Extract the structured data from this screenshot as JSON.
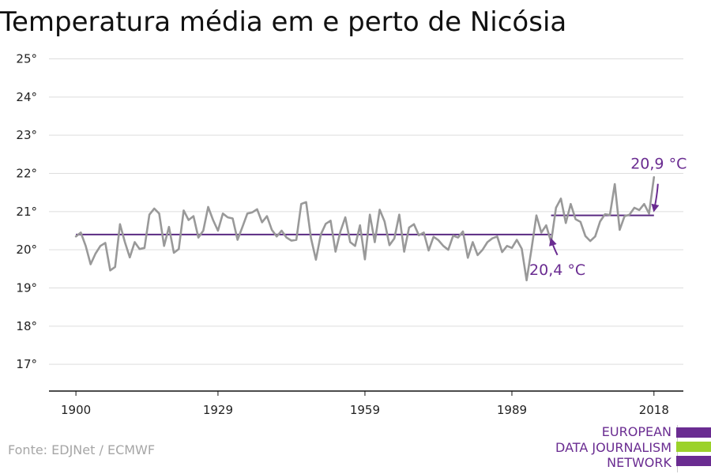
{
  "title": "Temperatura média em e perto de Nicósia",
  "source": "Fonte: EDJNet / ECMWF",
  "logo": {
    "lines": [
      "EUROPEAN",
      "DATA JOURNALISM",
      "NETWORK"
    ],
    "colors": [
      "#6a2c91",
      "#9bd22a",
      "#6a2c91"
    ]
  },
  "colors": {
    "series": "#999999",
    "average": "#5a2a82",
    "annotation": "#6a2c91",
    "grid": "#dddddd",
    "axis": "#111111"
  },
  "chart_data": {
    "type": "line",
    "title": "Temperatura média em e perto de Nicósia",
    "xlabel": "",
    "ylabel": "",
    "ylim": [
      16.3,
      25.3
    ],
    "xlim": [
      1894.5,
      2024
    ],
    "grid": true,
    "x_ticks": [
      1900,
      1929,
      1959,
      1989,
      2018
    ],
    "y_ticks": [
      17,
      18,
      19,
      20,
      21,
      22,
      23,
      24,
      25
    ],
    "y_tick_labels": [
      "17°",
      "18°",
      "19°",
      "20°",
      "21°",
      "22°",
      "23°",
      "24°",
      "25°"
    ],
    "series": [
      {
        "name": "",
        "x": [
          1900,
          1901,
          1902,
          1903,
          1904,
          1905,
          1906,
          1907,
          1908,
          1909,
          1910,
          1911,
          1912,
          1913,
          1914,
          1915,
          1916,
          1917,
          1918,
          1919,
          1920,
          1921,
          1922,
          1923,
          1924,
          1925,
          1926,
          1927,
          1928,
          1929,
          1930,
          1931,
          1932,
          1933,
          1934,
          1935,
          1936,
          1937,
          1938,
          1939,
          1940,
          1941,
          1942,
          1943,
          1944,
          1945,
          1946,
          1947,
          1948,
          1949,
          1950,
          1951,
          1952,
          1953,
          1954,
          1955,
          1956,
          1957,
          1958,
          1959,
          1960,
          1961,
          1962,
          1963,
          1964,
          1965,
          1966,
          1967,
          1968,
          1969,
          1970,
          1971,
          1972,
          1973,
          1974,
          1975,
          1976,
          1977,
          1978,
          1979,
          1980,
          1981,
          1982,
          1983,
          1984,
          1985,
          1986,
          1987,
          1988,
          1989,
          1990,
          1991,
          1992,
          1993,
          1994,
          1995,
          1996,
          1997,
          1998,
          1999,
          2000,
          2001,
          2002,
          2003,
          2004,
          2005,
          2006,
          2007,
          2008,
          2009,
          2010,
          2011,
          2012,
          2013,
          2014,
          2015,
          2016,
          2017,
          2018
        ],
        "values": [
          20.35,
          20.45,
          20.1,
          19.62,
          19.9,
          20.1,
          20.18,
          19.46,
          19.55,
          20.67,
          20.2,
          19.8,
          20.2,
          20.02,
          20.05,
          20.92,
          21.08,
          20.95,
          20.1,
          20.6,
          19.92,
          20.02,
          21.03,
          20.78,
          20.88,
          20.32,
          20.5,
          21.12,
          20.78,
          20.5,
          20.95,
          20.85,
          20.82,
          20.26,
          20.6,
          20.95,
          20.98,
          21.06,
          20.72,
          20.88,
          20.52,
          20.35,
          20.5,
          20.32,
          20.24,
          20.26,
          21.2,
          21.25,
          20.3,
          19.74,
          20.4,
          20.68,
          20.76,
          19.95,
          20.48,
          20.85,
          20.2,
          20.1,
          20.64,
          19.75,
          20.92,
          20.2,
          21.05,
          20.74,
          20.12,
          20.3,
          20.92,
          19.95,
          20.58,
          20.67,
          20.38,
          20.45,
          19.98,
          20.34,
          20.25,
          20.1,
          20.0,
          20.37,
          20.32,
          20.48,
          19.79,
          20.2,
          19.86,
          20.0,
          20.2,
          20.3,
          20.35,
          19.94,
          20.1,
          20.05,
          20.26,
          20.03,
          19.2,
          20.02,
          20.9,
          20.45,
          20.64,
          20.2,
          21.1,
          21.34,
          20.7,
          21.2,
          20.8,
          20.73,
          20.36,
          20.23,
          20.35,
          20.74,
          20.93,
          20.91,
          21.72,
          20.52,
          20.88,
          20.92,
          21.1,
          21.04,
          21.2,
          20.95,
          21.9
        ]
      }
    ],
    "averages": [
      {
        "x_start": 1900,
        "x_end": 1997,
        "value": 20.4
      },
      {
        "x_start": 1997,
        "x_end": 2018,
        "value": 20.9
      }
    ],
    "annotations": [
      {
        "text": "20,4 °C",
        "x": 1997,
        "y": 20.4
      },
      {
        "text": "20,9 °C",
        "x": 2018,
        "y": 20.9
      }
    ]
  }
}
